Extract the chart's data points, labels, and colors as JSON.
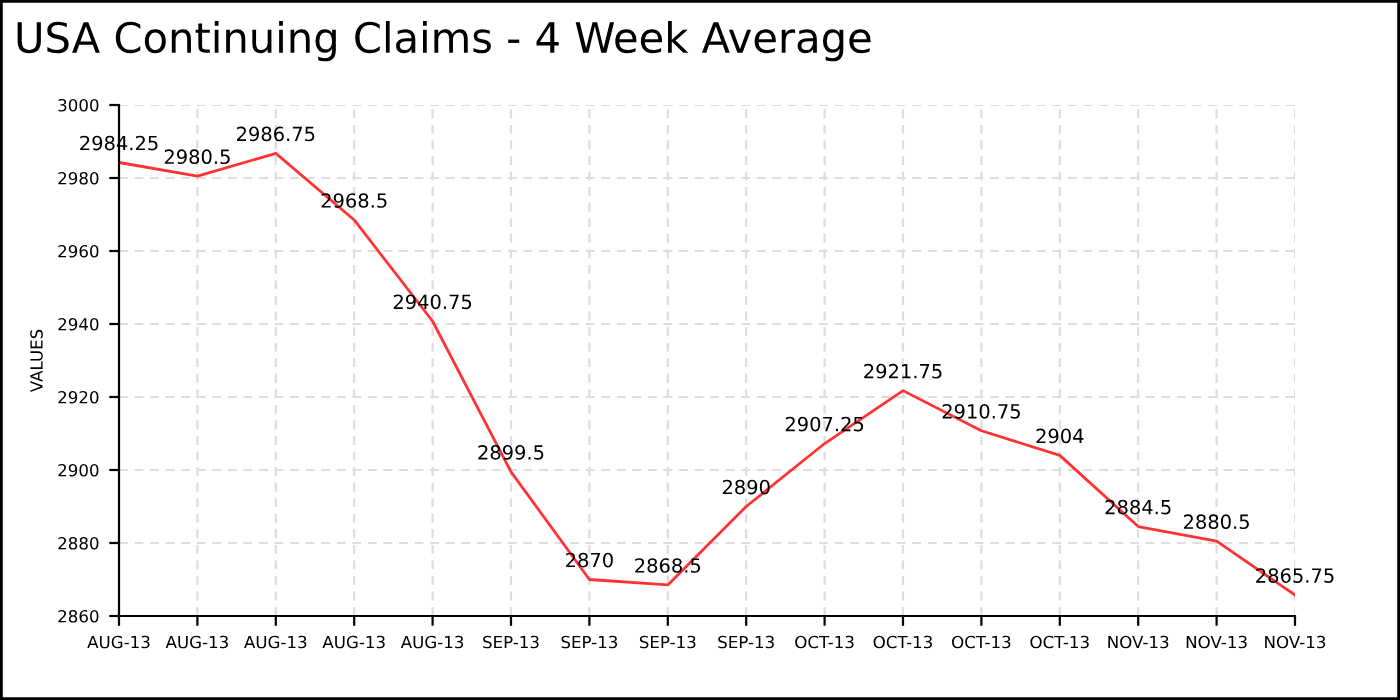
{
  "chart_data": {
    "type": "line",
    "title": "USA Continuing Claims - 4 Week Average",
    "ylabel": "VALUES",
    "categories": [
      "AUG-13",
      "AUG-13",
      "AUG-13",
      "AUG-13",
      "AUG-13",
      "SEP-13",
      "SEP-13",
      "SEP-13",
      "SEP-13",
      "OCT-13",
      "OCT-13",
      "OCT-13",
      "OCT-13",
      "NOV-13",
      "NOV-13",
      "NOV-13"
    ],
    "series": [
      {
        "color": "#ff3333",
        "values": [
          2984.25,
          2980.5,
          2986.75,
          2968.5,
          2940.75,
          2899.5,
          2870,
          2868.5,
          2890,
          2907.25,
          2921.75,
          2910.75,
          2904,
          2884.5,
          2880.5,
          2865.75
        ]
      }
    ],
    "ylim": [
      2860,
      3000
    ],
    "yticks": [
      2860,
      2880,
      2900,
      2920,
      2940,
      2960,
      2980,
      3000
    ],
    "grid": true,
    "data_labels": true,
    "marker": "none",
    "line_style": "solid"
  }
}
